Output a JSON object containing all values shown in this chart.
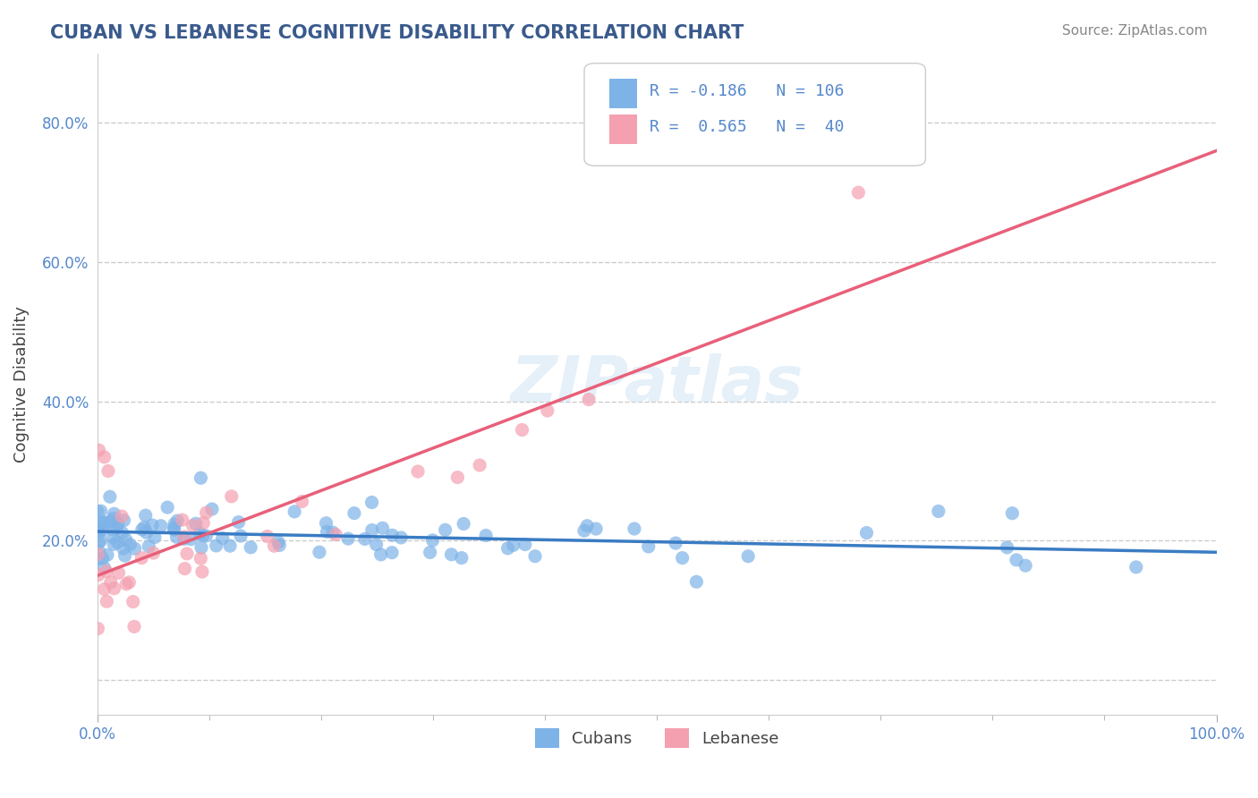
{
  "title": "CUBAN VS LEBANESE COGNITIVE DISABILITY CORRELATION CHART",
  "source": "Source: ZipAtlas.com",
  "ylabel": "Cognitive Disability",
  "color_cuban": "#7EB3E8",
  "color_lebanese": "#F4A0B0",
  "color_line_cuban": "#3A7CC4",
  "color_line_lebanese": "#E8607A",
  "title_color": "#3A5A8C",
  "source_color": "#888888",
  "axis_color": "#CCCCCC",
  "grid_color": "#CCCCCC",
  "background_color": "#FFFFFF",
  "watermark_text": "ZIPatlas",
  "xlim": [
    0.0,
    1.0
  ],
  "ylim": [
    -0.05,
    0.9
  ]
}
